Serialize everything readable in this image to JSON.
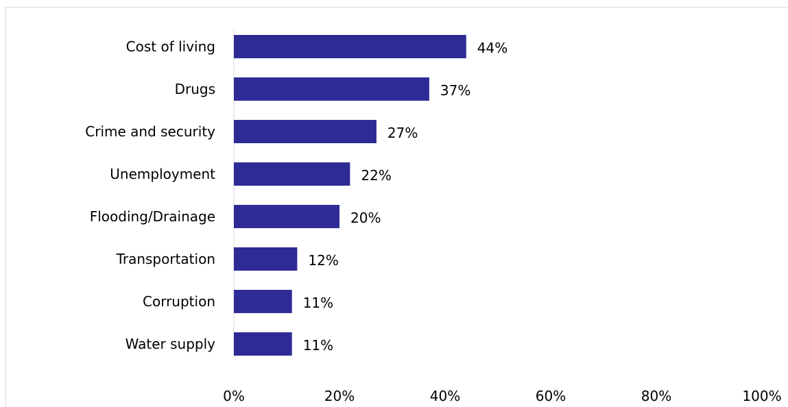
{
  "chart_data": {
    "type": "bar",
    "orientation": "horizontal",
    "categories": [
      "Cost of living",
      "Drugs",
      "Crime and security",
      "Unemployment",
      "Flooding/Drainage",
      "Transportation",
      "Corruption",
      "Water supply"
    ],
    "values": [
      44,
      37,
      27,
      22,
      20,
      12,
      11,
      11
    ],
    "value_labels": [
      "44%",
      "37%",
      "27%",
      "22%",
      "20%",
      "12%",
      "11%",
      "11%"
    ],
    "title": "",
    "xlabel": "",
    "ylabel": "",
    "xlim": [
      0,
      100
    ],
    "x_ticks": [
      "0%",
      "20%",
      "40%",
      "60%",
      "80%",
      "100%"
    ],
    "grid": false,
    "legend": "none",
    "bar_color": "#2E2B96"
  }
}
